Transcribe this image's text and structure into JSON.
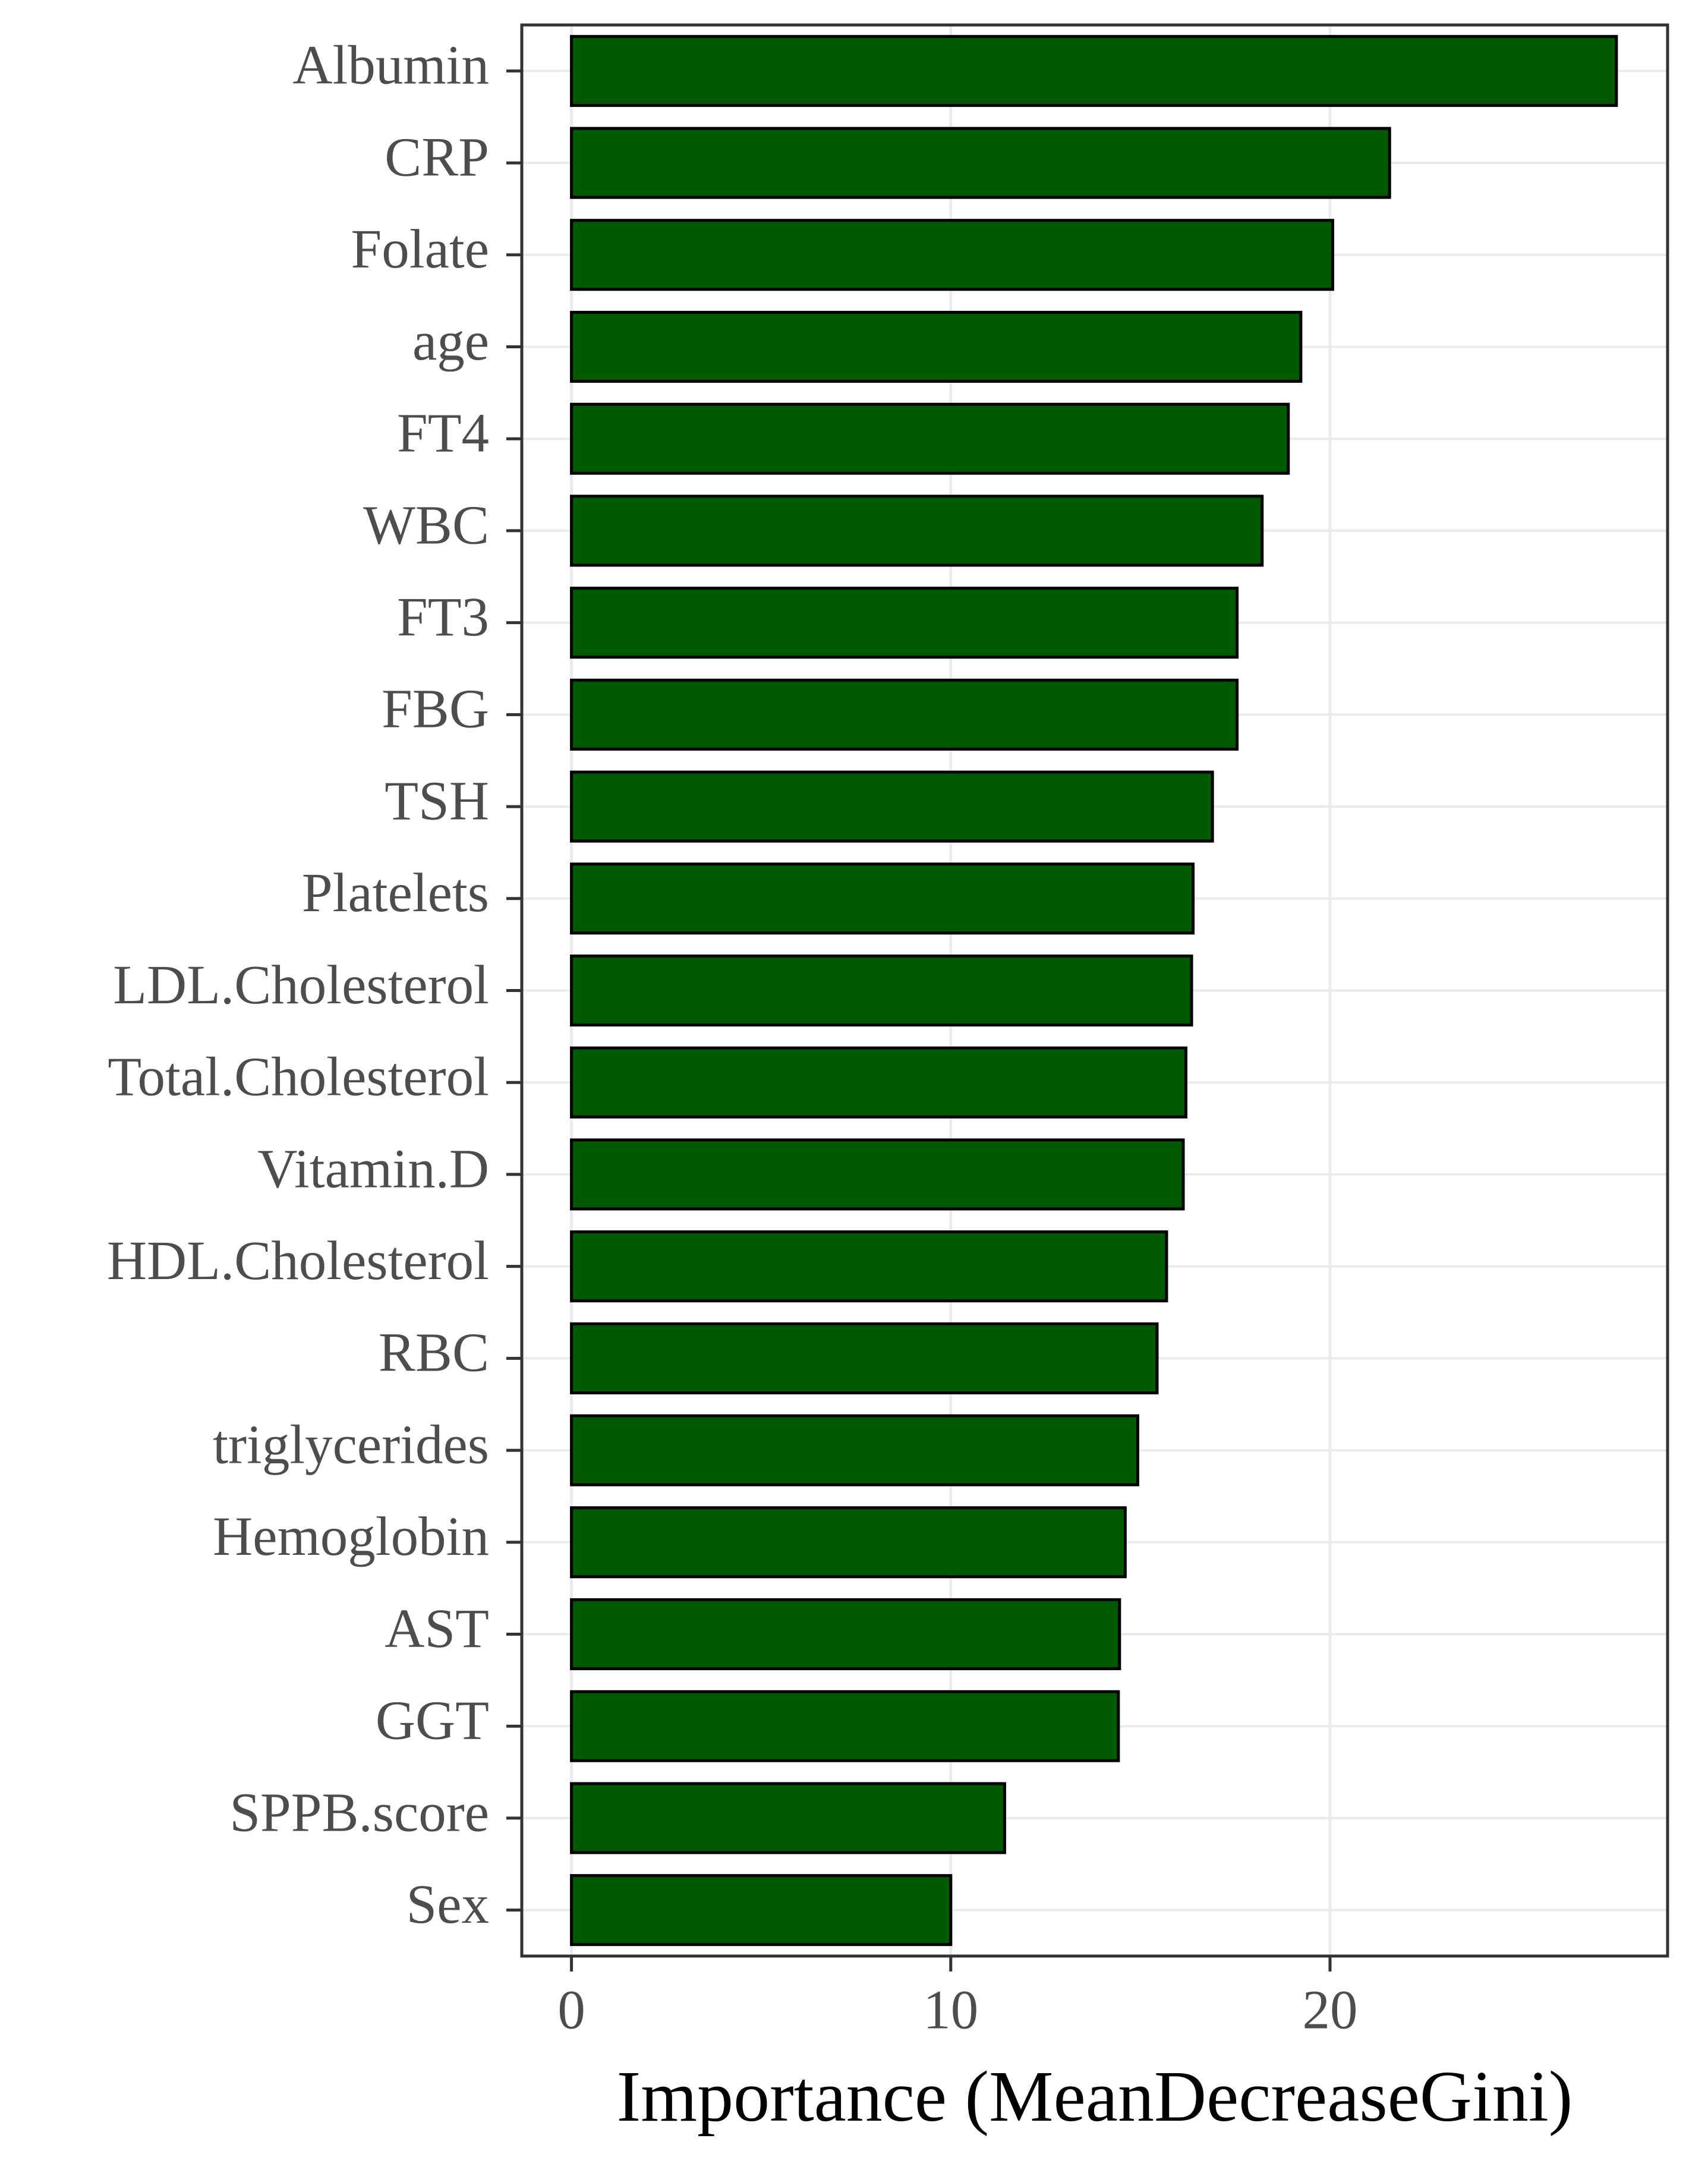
{
  "chart_data": {
    "type": "barh",
    "x_label": "Importance (MeanDecreaseGini)",
    "categories": [
      "Albumin",
      "CRP",
      "Folate",
      "age",
      "FT4",
      "WBC",
      "FT3",
      "FBG",
      "TSH",
      "Platelets",
      "LDL.Cholesterol",
      "Total.Cholesterol",
      "Vitamin.D",
      "HDL.Cholesterol",
      "RBC",
      "triglycerides",
      "Hemoglobin",
      "AST",
      "GGT",
      "SPPB.score",
      "Sex"
    ],
    "values": [
      27.55,
      21.57,
      20.07,
      19.23,
      18.9,
      18.21,
      17.55,
      17.55,
      16.9,
      16.39,
      16.35,
      16.2,
      16.13,
      15.69,
      15.44,
      14.93,
      14.6,
      14.45,
      14.42,
      11.42,
      10.0
    ],
    "color": "#005a00",
    "xlim": [
      -1.31,
      28.9
    ],
    "xticks": [
      0,
      10,
      20
    ],
    "grid": true
  }
}
